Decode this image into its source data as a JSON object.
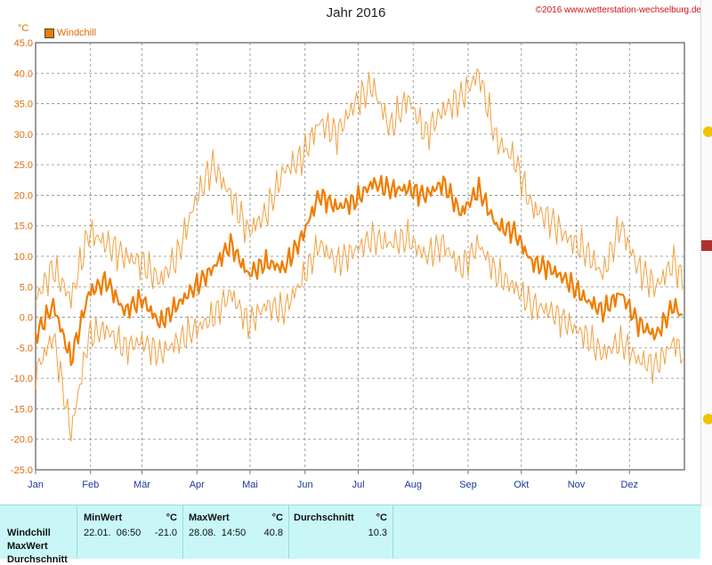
{
  "title": "Jahr 2016",
  "copyright": "©2016 www.wetterstation-wechselburg.de",
  "unit": "°C",
  "legend": {
    "label": "Windchill",
    "color": "#f07d00"
  },
  "chart_data": {
    "type": "line",
    "title": "Jahr 2016",
    "ylabel": "°C",
    "ylim": [
      -25.0,
      45.0
    ],
    "y_ticks": [
      "45.0",
      "40.0",
      "35.0",
      "30.0",
      "25.0",
      "20.0",
      "15.0",
      "10.0",
      "5.0",
      "0.0",
      "-5.0",
      "-10.0",
      "-15.0",
      "-20.0",
      "-25.0"
    ],
    "x_ticks": [
      "Jan",
      "Feb",
      "Mär",
      "Apr",
      "Mai",
      "Jun",
      "Jul",
      "Aug",
      "Sep",
      "Okt",
      "Nov",
      "Dez"
    ],
    "grid": true,
    "legend_position": "top-left",
    "series": [
      {
        "name": "Windchill",
        "note_series": "daily mean",
        "x": [
          1,
          11,
          21,
          31,
          41,
          51,
          61,
          71,
          81,
          91,
          101,
          111,
          121,
          131,
          141,
          151,
          161,
          171,
          181,
          191,
          201,
          211,
          221,
          231,
          241,
          251,
          261,
          271,
          281,
          291,
          301,
          311,
          321,
          331,
          341,
          351,
          361,
          366
        ],
        "values": [
          -3,
          2,
          -7,
          4,
          6,
          1,
          3,
          -1,
          2,
          5,
          8,
          12,
          7,
          9,
          8,
          13,
          20,
          18,
          19,
          22,
          21,
          21,
          20,
          22,
          17,
          21,
          15,
          14,
          9,
          8,
          6,
          3,
          1,
          4,
          -1,
          -3,
          2,
          0
        ]
      },
      {
        "name": "",
        "note_series": "daily max",
        "x": [
          1,
          11,
          21,
          31,
          41,
          51,
          61,
          71,
          81,
          91,
          101,
          111,
          121,
          131,
          141,
          151,
          161,
          171,
          181,
          191,
          201,
          211,
          221,
          231,
          241,
          251,
          261,
          271,
          281,
          291,
          301,
          311,
          321,
          331,
          341,
          351,
          361,
          366
        ],
        "values": [
          3,
          8,
          3,
          14,
          12,
          10,
          9,
          6,
          10,
          19,
          25,
          20,
          14,
          17,
          24,
          26,
          32,
          30,
          35,
          38,
          31,
          36,
          30,
          34,
          36,
          40,
          29,
          26,
          18,
          16,
          13,
          11,
          7,
          15,
          8,
          5,
          9,
          6
        ]
      },
      {
        "name": "",
        "note_series": "daily min",
        "x": [
          1,
          11,
          21,
          31,
          41,
          51,
          61,
          71,
          81,
          91,
          101,
          111,
          121,
          131,
          141,
          151,
          161,
          171,
          181,
          191,
          201,
          211,
          221,
          231,
          241,
          251,
          261,
          271,
          281,
          291,
          301,
          311,
          321,
          331,
          341,
          351,
          361,
          366
        ],
        "values": [
          -9,
          -3,
          -19,
          -3,
          -2,
          -5,
          -4,
          -6,
          -4,
          -2,
          0,
          4,
          -1,
          2,
          1,
          6,
          12,
          9,
          11,
          13,
          12,
          13,
          10,
          12,
          8,
          12,
          7,
          5,
          2,
          1,
          -1,
          -3,
          -6,
          -4,
          -7,
          -8,
          -4,
          -6
        ]
      }
    ]
  },
  "stats": {
    "row_labels": [
      "Windchill",
      "MaxWert",
      "Durchschnitt"
    ],
    "min": {
      "header": "MinWert",
      "unit": "°C",
      "time": "22.01.  06:50",
      "value": "-21.0"
    },
    "max": {
      "header": "MaxWert",
      "unit": "°C",
      "time": "28.08.  14:50",
      "value": "40.8"
    },
    "avg": {
      "header": "Durchschnitt",
      "unit": "°C",
      "value": "10.3"
    }
  }
}
